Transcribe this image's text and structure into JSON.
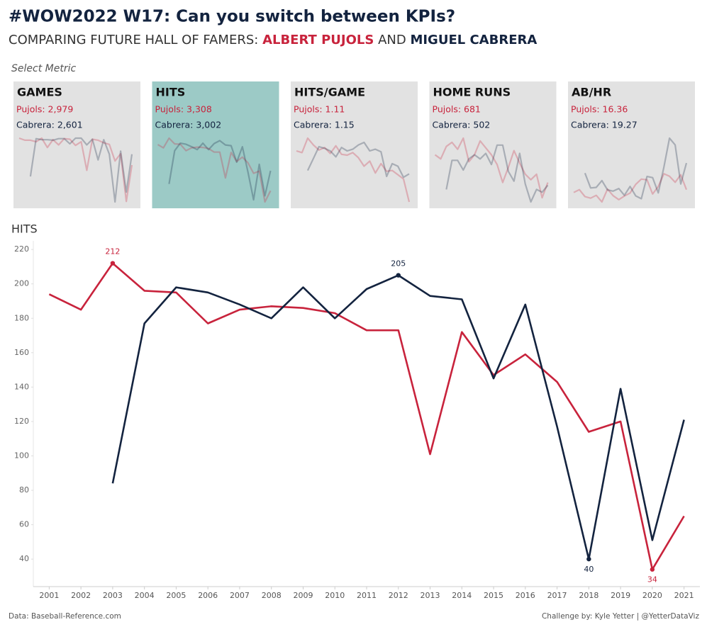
{
  "header": {
    "title": "#WOW2022 W17: Can you switch between KPIs?",
    "subtitle_lead": "COMPARING FUTURE HALL OF FAMERS:",
    "player_1": "ALBERT PUJOLS",
    "joiner": "AND",
    "player_2": "MIGUEL CABRERA",
    "selector_label": "Select Metric"
  },
  "footer": {
    "source": "Data: Baseball-Reference.com",
    "credit": "Challenge by: Kyle Yetter | @YetterDataViz"
  },
  "chart_data": [
    {
      "type": "line",
      "title": "HITS",
      "categories": [
        "2001",
        "2002",
        "2003",
        "2004",
        "2005",
        "2006",
        "2007",
        "2008",
        "2009",
        "2010",
        "2011",
        "2012",
        "2013",
        "2014",
        "2015",
        "2016",
        "2017",
        "2018",
        "2019",
        "2020",
        "2021"
      ],
      "series": [
        {
          "name": "Pujols",
          "color": "#c8233c",
          "values": [
            194,
            185,
            212,
            196,
            195,
            177,
            185,
            187,
            186,
            183,
            173,
            173,
            101,
            172,
            147,
            159,
            143,
            114,
            120,
            34,
            65
          ]
        },
        {
          "name": "Cabrera",
          "color": "#13233f",
          "values": [
            null,
            null,
            84,
            177,
            198,
            195,
            188,
            180,
            198,
            180,
            197,
            205,
            193,
            191,
            145,
            188,
            117,
            40,
            139,
            51,
            121
          ]
        }
      ],
      "ylim": [
        24,
        225
      ],
      "yticks": [
        40,
        60,
        80,
        100,
        120,
        140,
        160,
        180,
        200,
        220
      ],
      "grid": false
    },
    {
      "type": "sparkline",
      "title": "GAMES",
      "selected": false,
      "series": [
        {
          "name": "Pujols: 2,979",
          "color": "#c8233c",
          "values": [
            161,
            157,
            157,
            154,
            161,
            143,
            158,
            148,
            160,
            159,
            147,
            154,
            99,
            159,
            157,
            152,
            149,
            117,
            131,
            39,
            109
          ]
        },
        {
          "name": "Cabrera: 2,601",
          "color": "#13233f",
          "values": [
            null,
            null,
            87,
            160,
            158,
            158,
            157,
            160,
            160,
            150,
            161,
            161,
            148,
            159,
            119,
            158,
            130,
            38,
            136,
            57,
            130
          ]
        }
      ]
    },
    {
      "type": "sparkline",
      "title": "HITS",
      "selected": true,
      "series": [
        {
          "name": "Pujols: 3,308",
          "color": "#c8233c",
          "values": [
            194,
            185,
            212,
            196,
            195,
            177,
            185,
            187,
            186,
            183,
            173,
            173,
            101,
            172,
            147,
            159,
            143,
            114,
            120,
            34,
            65
          ]
        },
        {
          "name": "Cabrera: 3,002",
          "color": "#13233f",
          "values": [
            null,
            null,
            84,
            177,
            198,
            195,
            188,
            180,
            198,
            180,
            197,
            205,
            193,
            191,
            145,
            188,
            117,
            40,
            139,
            51,
            121
          ]
        }
      ]
    },
    {
      "type": "sparkline",
      "title": "HITS/GAME",
      "selected": false,
      "series": [
        {
          "name": "Pujols: 1.11",
          "color": "#c8233c",
          "values": [
            1.2,
            1.18,
            1.35,
            1.27,
            1.21,
            1.24,
            1.17,
            1.26,
            1.16,
            1.15,
            1.18,
            1.12,
            1.02,
            1.08,
            0.94,
            1.05,
            0.96,
            0.97,
            0.92,
            0.87,
            0.6
          ]
        },
        {
          "name": "Cabrera: 1.15",
          "color": "#13233f",
          "values": [
            null,
            null,
            0.97,
            1.11,
            1.25,
            1.23,
            1.2,
            1.13,
            1.24,
            1.2,
            1.22,
            1.27,
            1.3,
            1.2,
            1.22,
            1.19,
            0.9,
            1.05,
            1.02,
            0.89,
            0.93
          ]
        }
      ]
    },
    {
      "type": "sparkline",
      "title": "HOME RUNS",
      "selected": false,
      "series": [
        {
          "name": "Pujols: 681",
          "color": "#c8233c",
          "values": [
            37,
            34,
            43,
            46,
            41,
            49,
            32,
            37,
            47,
            42,
            37,
            30,
            17,
            28,
            40,
            31,
            23,
            19,
            23,
            6,
            17
          ]
        },
        {
          "name": "Cabrera: 502",
          "color": "#13233f",
          "values": [
            null,
            null,
            12,
            33,
            33,
            26,
            34,
            37,
            34,
            38,
            30,
            44,
            44,
            25,
            18,
            38,
            16,
            3,
            12,
            10,
            15
          ]
        }
      ]
    },
    {
      "type": "sparkline",
      "title": "AB/HR",
      "selected": false,
      "series": [
        {
          "name": "Pujols: 16.36",
          "color": "#c8233c",
          "values": [
            15.9,
            17.4,
            13.7,
            12.9,
            14.4,
            10.9,
            17.7,
            14.2,
            12.1,
            14.0,
            15.6,
            20.2,
            23.0,
            22.6,
            15.1,
            19.1,
            25.8,
            24.5,
            21.3,
            25.3,
            17.4
          ]
        },
        {
          "name": "Cabrera: 19.27",
          "color": "#13233f",
          "values": [
            null,
            null,
            26.2,
            18.3,
            18.6,
            22.2,
            17.3,
            16.6,
            18.0,
            14.4,
            19.1,
            14.1,
            12.6,
            24.4,
            23.8,
            15.7,
            29.3,
            44.7,
            41.1,
            20.4,
            31.5
          ]
        }
      ]
    }
  ]
}
